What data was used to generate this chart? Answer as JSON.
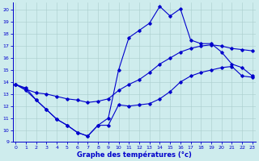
{
  "title": "Graphe des températures (°c)",
  "bg_color": "#ceeced",
  "line_color": "#0000cc",
  "grid_color": "#aacccc",
  "xlim": [
    -0.3,
    23.3
  ],
  "ylim": [
    9,
    20.6
  ],
  "xticks": [
    0,
    1,
    2,
    3,
    4,
    5,
    6,
    7,
    8,
    9,
    10,
    11,
    12,
    13,
    14,
    15,
    16,
    17,
    18,
    19,
    20,
    21,
    22,
    23
  ],
  "yticks": [
    9,
    10,
    11,
    12,
    13,
    14,
    15,
    16,
    17,
    18,
    19,
    20
  ],
  "series1_x": [
    0,
    1,
    2,
    3,
    4,
    5,
    6,
    7,
    8,
    9,
    10,
    11,
    12,
    13,
    14,
    15,
    16,
    17,
    18,
    19,
    20,
    21,
    22,
    23
  ],
  "series1_y": [
    13.8,
    13.5,
    12.5,
    11.7,
    10.9,
    10.4,
    9.8,
    9.5,
    10.4,
    11.0,
    15.0,
    17.7,
    18.3,
    18.9,
    20.3,
    19.5,
    20.1,
    17.5,
    17.2,
    17.2,
    16.5,
    15.5,
    15.2,
    14.5
  ],
  "series2_x": [
    0,
    1,
    2,
    3,
    4,
    5,
    6,
    7,
    8,
    9,
    10,
    11,
    12,
    13,
    14,
    15,
    16,
    17,
    18,
    19,
    20,
    21,
    22,
    23
  ],
  "series2_y": [
    13.8,
    13.4,
    13.1,
    13.0,
    12.8,
    12.6,
    12.5,
    12.3,
    12.4,
    12.6,
    13.3,
    13.8,
    14.2,
    14.8,
    15.5,
    16.0,
    16.5,
    16.8,
    17.0,
    17.1,
    17.0,
    16.8,
    16.7,
    16.6
  ],
  "series3_x": [
    0,
    1,
    2,
    3,
    4,
    5,
    6,
    7,
    8,
    9,
    10,
    11,
    12,
    13,
    14,
    15,
    16,
    17,
    18,
    19,
    20,
    21,
    22,
    23
  ],
  "series3_y": [
    13.8,
    13.3,
    12.5,
    11.7,
    10.9,
    10.4,
    9.8,
    9.5,
    10.4,
    10.4,
    12.1,
    12.0,
    12.1,
    12.2,
    12.6,
    13.2,
    14.0,
    14.5,
    14.8,
    15.0,
    15.2,
    15.3,
    14.5,
    14.4
  ]
}
